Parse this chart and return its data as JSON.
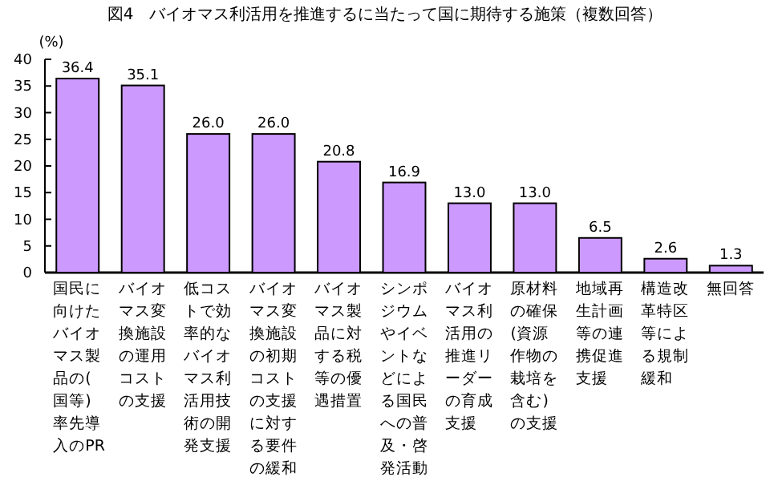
{
  "chart_data": {
    "type": "bar",
    "title": "図4　バイオマス利活用を推進するに当たって国に期待する施策（複数回答）",
    "ylabel": "(%)",
    "categories": [
      "国民に向けたバイオマス製品の(国等)率先導入のPR",
      "バイオマス変換施設の運用コストの支援",
      "低コストで効率的なバイオマス利活用技術の開発支援",
      "バイオマス変換施設の初期コストの支援に対する要件の緩和",
      "バイオマス製品に対する税等の優遇措置",
      "シンポジウムやイベントなどによる国民への普及・啓発活動",
      "バイオマス利活用の推進リーダーの育成支援",
      "原材料の確保(資源作物の栽培を含む)の支援",
      "地域再生計画等の連携促進支援",
      "構造改革特区等による規制緩和",
      "無回答"
    ],
    "values": [
      36.4,
      35.1,
      26.0,
      26.0,
      20.8,
      16.9,
      13.0,
      13.0,
      6.5,
      2.6,
      1.3
    ],
    "value_labels": [
      "36.4",
      "35.1",
      "26.0",
      "26.0",
      "20.8",
      "16.9",
      "13.0",
      "13.0",
      "6.5",
      "2.6",
      "1.3"
    ],
    "color": "#cc99ff",
    "ylim": [
      0,
      40
    ],
    "yticks": [
      0,
      5,
      10,
      15,
      20,
      25,
      30,
      35,
      40
    ],
    "grid": false
  }
}
